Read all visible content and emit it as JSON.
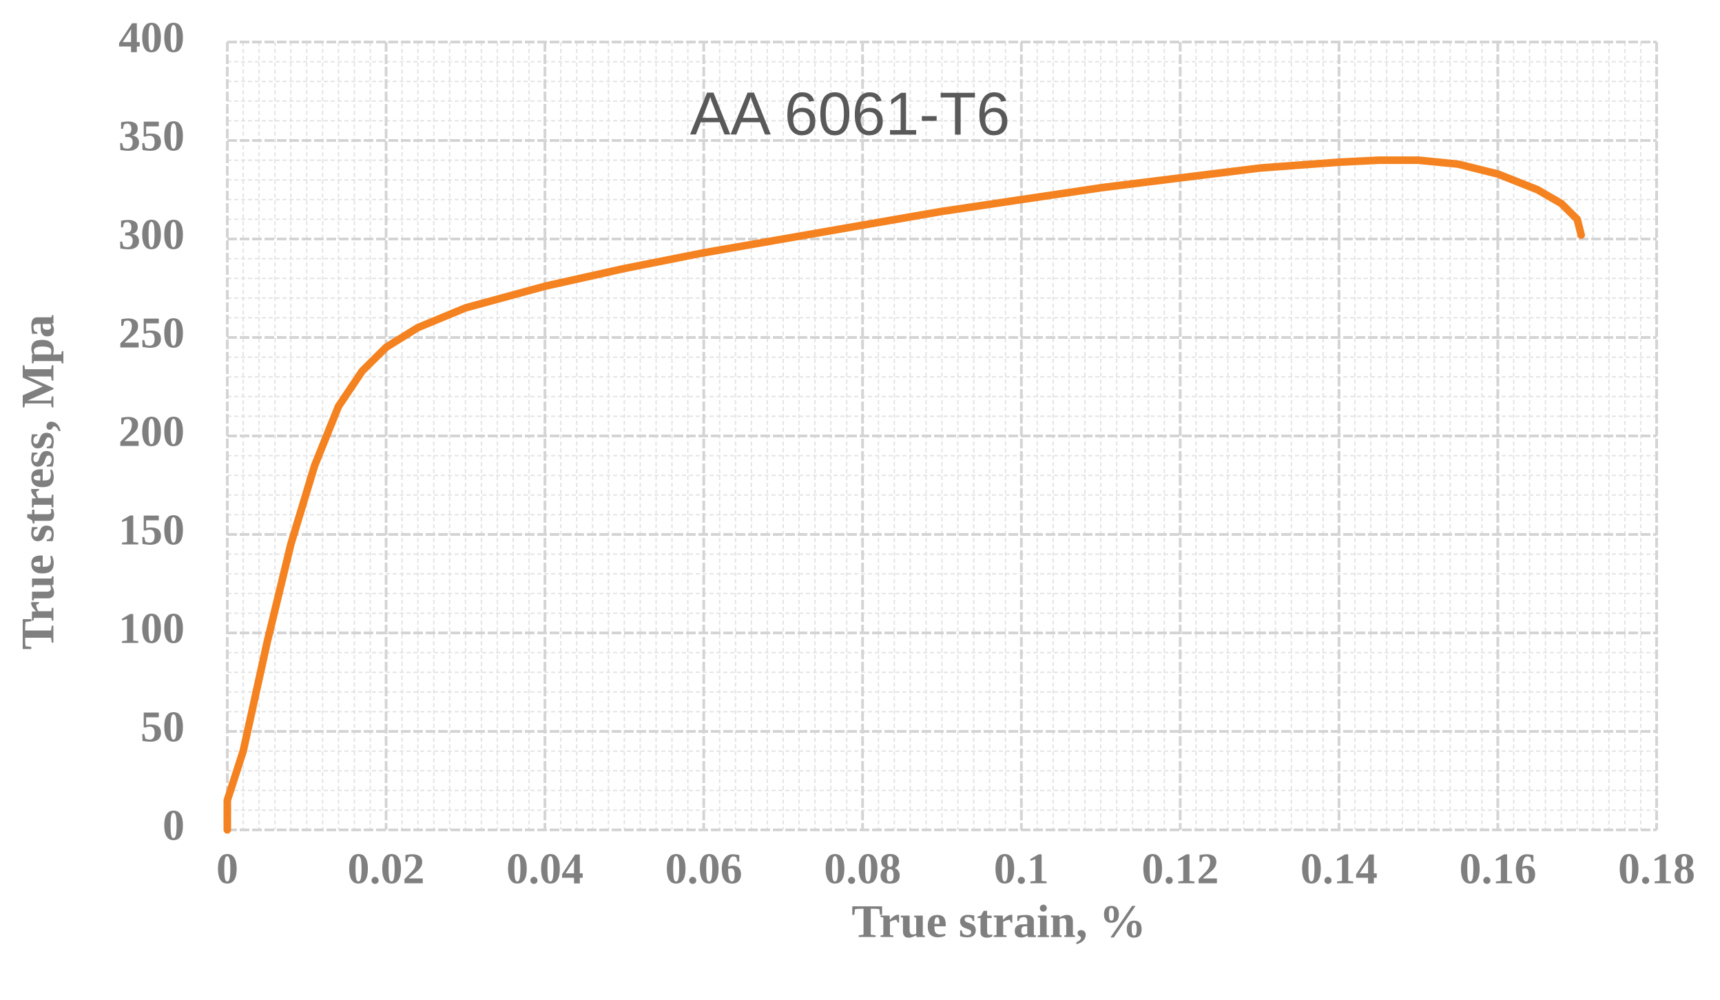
{
  "chart_data": {
    "type": "line",
    "title": "AA 6061-T6",
    "x_label": "True strain, %",
    "y_label": "True stress, Mpa",
    "x": [
      0,
      0,
      0.002,
      0.005,
      0.008,
      0.011,
      0.014,
      0.017,
      0.02,
      0.024,
      0.03,
      0.04,
      0.05,
      0.06,
      0.07,
      0.08,
      0.09,
      0.1,
      0.11,
      0.12,
      0.13,
      0.14,
      0.145,
      0.15,
      0.155,
      0.16,
      0.165,
      0.168,
      0.17,
      0.1705
    ],
    "series": [
      {
        "name": "AA 6061-T6",
        "color": "#f58220",
        "values": [
          0,
          15,
          40,
          95,
          145,
          185,
          215,
          233,
          245,
          255,
          265,
          276,
          285,
          293,
          300,
          307,
          314,
          320,
          326,
          331,
          336,
          339,
          340,
          340,
          338,
          333,
          325,
          318,
          310,
          302
        ]
      }
    ],
    "xlim": [
      0,
      0.18
    ],
    "xticks": [
      0,
      0.02,
      0.04,
      0.06,
      0.08,
      0.1,
      0.12,
      0.14,
      0.16,
      0.18
    ],
    "ylim": [
      0,
      400
    ],
    "yticks": [
      0,
      50,
      100,
      150,
      200,
      250,
      300,
      350,
      400
    ],
    "grid": true,
    "minor_grid": true
  }
}
